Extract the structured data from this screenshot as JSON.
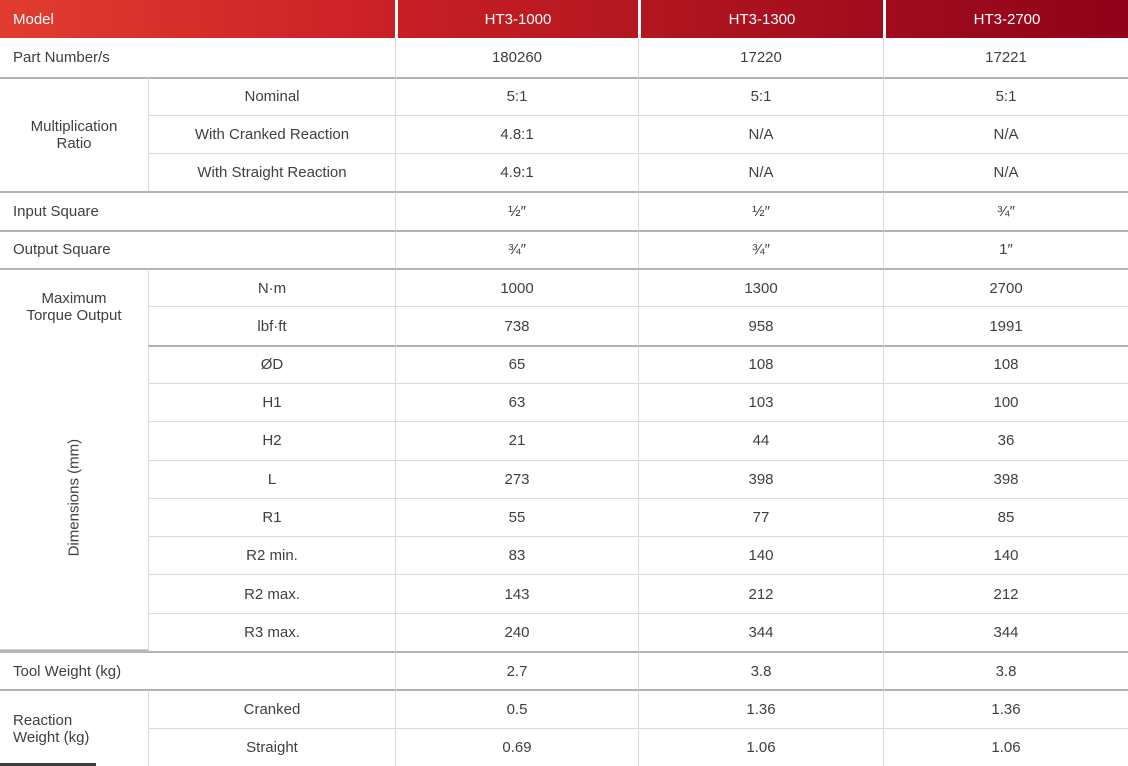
{
  "header": {
    "label": "Model",
    "models": [
      "HT3-1000",
      "HT3-1300",
      "HT3-2700"
    ]
  },
  "rows": {
    "part_number": {
      "label": "Part Number/s",
      "values": [
        "180260",
        "17220",
        "17221"
      ]
    },
    "multiplication_ratio": {
      "label": "Multiplication Ratio",
      "sub": [
        {
          "label": "Nominal",
          "values": [
            "5:1",
            "5:1",
            "5:1"
          ]
        },
        {
          "label": "With Cranked Reaction",
          "values": [
            "4.8:1",
            "N/A",
            "N/A"
          ]
        },
        {
          "label": "With Straight Reaction",
          "values": [
            "4.9:1",
            "N/A",
            "N/A"
          ]
        }
      ]
    },
    "input_square": {
      "label": "Input Square",
      "values": [
        "½″",
        "½″",
        "¾″"
      ]
    },
    "output_square": {
      "label": "Output Square",
      "values": [
        "¾″",
        "¾″",
        "1″"
      ]
    },
    "max_torque": {
      "label": "Maximum Torque Output",
      "sub": [
        {
          "label": "N·m",
          "values": [
            "1000",
            "1300",
            "2700"
          ]
        },
        {
          "label": "lbf·ft",
          "values": [
            "738",
            "958",
            "1991"
          ]
        }
      ]
    },
    "dimensions": {
      "label": "Dimensions (mm)",
      "sub": [
        {
          "label": "ØD",
          "values": [
            "65",
            "108",
            "108"
          ]
        },
        {
          "label": "H1",
          "values": [
            "63",
            "103",
            "100"
          ]
        },
        {
          "label": "H2",
          "values": [
            "21",
            "44",
            "36"
          ]
        },
        {
          "label": "L",
          "values": [
            "273",
            "398",
            "398"
          ]
        },
        {
          "label": "R1",
          "values": [
            "55",
            "77",
            "85"
          ]
        },
        {
          "label": "R2 min.",
          "values": [
            "83",
            "140",
            "140"
          ]
        },
        {
          "label": "R2 max.",
          "values": [
            "143",
            "212",
            "212"
          ]
        },
        {
          "label": "R3 max.",
          "values": [
            "240",
            "344",
            "344"
          ]
        }
      ]
    },
    "tool_weight": {
      "label": "Tool Weight (kg)",
      "values": [
        "2.7",
        "3.8",
        "3.8"
      ]
    },
    "reaction_weight": {
      "label": "Reaction Weight (kg)",
      "sub": [
        {
          "label": "Cranked",
          "values": [
            "0.5",
            "1.36",
            "1.36"
          ]
        },
        {
          "label": "Straight",
          "values": [
            "0.69",
            "1.06",
            "1.06"
          ]
        }
      ]
    }
  },
  "colors": {
    "header_gradient_start": "#e03d2f",
    "header_gradient_end": "#90021a",
    "header_text": "#ffffff",
    "body_text": "#3f3f3f",
    "section_border": "#b3b3b3",
    "inner_border": "#dadada"
  }
}
